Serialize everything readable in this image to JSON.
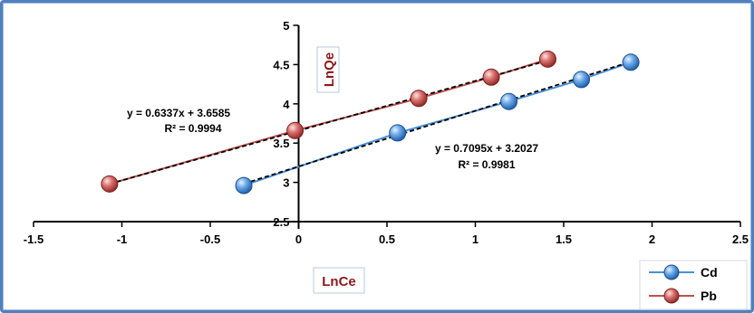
{
  "chart_data": {
    "type": "scatter",
    "title": "",
    "xlabel": "LnCe",
    "ylabel": "LnQe",
    "xlim": [
      -1.5,
      2.5
    ],
    "ylim": [
      2.5,
      5
    ],
    "xticks": [
      -1.5,
      -1,
      -0.5,
      0,
      0.5,
      1,
      1.5,
      2,
      2.5
    ],
    "yticks": [
      2.5,
      3,
      3.5,
      4,
      4.5,
      5
    ],
    "xtick_labels": [
      "-1.5",
      "-1",
      "-0.5",
      "0",
      "0.5",
      "1",
      "1.5",
      "2",
      "2.5"
    ],
    "ytick_labels": [
      "2.5",
      "3",
      "3.5",
      "4",
      "4.5",
      "5"
    ],
    "grid": false,
    "legend_position": "bottom-right",
    "series": [
      {
        "name": "Cd",
        "color": "#4a90d9",
        "points": [
          [
            -0.31,
            2.96
          ],
          [
            0.56,
            3.63
          ],
          [
            1.19,
            4.03
          ],
          [
            1.6,
            4.31
          ],
          [
            1.88,
            4.53
          ]
        ],
        "trendline": {
          "slope": 0.7095,
          "intercept": 3.2027,
          "x_range": [
            -0.31,
            1.88
          ]
        },
        "equation": "y = 0.7095x + 3.2027",
        "r2": "R² = 0.9981"
      },
      {
        "name": "Pb",
        "color": "#c0504d",
        "points": [
          [
            -1.07,
            2.98
          ],
          [
            -0.02,
            3.66
          ],
          [
            0.68,
            4.07
          ],
          [
            1.09,
            4.34
          ],
          [
            1.41,
            4.57
          ]
        ],
        "trendline": {
          "slope": 0.6337,
          "intercept": 3.6585,
          "x_range": [
            -1.07,
            1.41
          ]
        },
        "equation": "y = 0.6337x + 3.6585",
        "r2": "R² = 0.9994"
      }
    ]
  }
}
